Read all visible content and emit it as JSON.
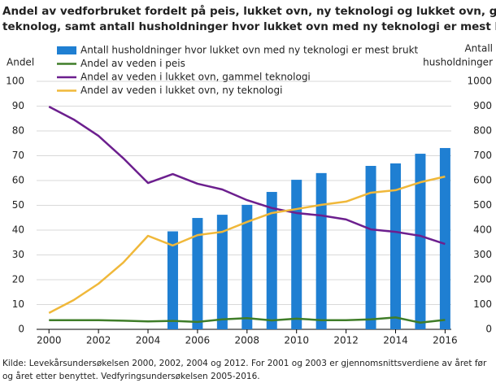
{
  "chart_data": {
    "type": "bar-line",
    "title": [
      "Andel av vedforbruket fordelt på peis, lukket ovn, ny teknologi og lukket ovn, gammel",
      "teknolog, samt antall husholdninger hvor lukket ovn med ny teknologi er mest brukt"
    ],
    "y_label": "Andel",
    "y2_label": [
      "Antall",
      "husholdninger"
    ],
    "source": [
      "Kilde: Levekårsundersøkelsen 2000, 2002, 2004 og  2012. For 2001 og 2003 er gjennomsnittsverdiene av året før",
      "og året etter benyttet. Vedfyringsundersøkelsen 2005-2016."
    ],
    "x": [
      2000,
      2001,
      2002,
      2003,
      2004,
      2005,
      2006,
      2007,
      2008,
      2009,
      2010,
      2011,
      2012,
      2013,
      2014,
      2015,
      2016
    ],
    "xlim": [
      1999.5,
      2016.25
    ],
    "xticks": [
      2000,
      2002,
      2004,
      2006,
      2008,
      2010,
      2012,
      2014,
      2016
    ],
    "ylim": [
      0,
      100
    ],
    "yticks": [
      0,
      10,
      20,
      30,
      40,
      50,
      60,
      70,
      80,
      90,
      100
    ],
    "y2lim": [
      0,
      1000
    ],
    "y2ticks": [
      0,
      100,
      200,
      300,
      400,
      500,
      600,
      700,
      800,
      900,
      1000
    ],
    "grid": true,
    "series": [
      {
        "name": "Antall husholdninger hvor lukket ovn med ny teknologi er mest brukt",
        "kind": "bar",
        "axis": "y2",
        "color": "#1f7fd2",
        "values": [
          null,
          null,
          null,
          null,
          null,
          395,
          449,
          462,
          502,
          554,
          603,
          630,
          null,
          659,
          669,
          708,
          731
        ]
      },
      {
        "name": "Andel av veden i peis",
        "kind": "line",
        "color": "#3f7d28",
        "values": [
          3.7,
          3.7,
          3.7,
          3.5,
          3.2,
          3.4,
          3.0,
          4.0,
          4.5,
          3.6,
          4.3,
          3.7,
          3.7,
          4.0,
          4.8,
          2.7,
          3.8
        ]
      },
      {
        "name": "Andel av veden i lukket ovn, gammel teknologi",
        "kind": "line",
        "color": "#6c1f8e",
        "values": [
          89.8,
          84.6,
          78,
          69,
          59,
          62.6,
          58.7,
          56.4,
          52.1,
          48.9,
          46.9,
          45.9,
          44.3,
          40.3,
          39.3,
          37.7,
          34.4
        ]
      },
      {
        "name": "Andel av veden i lukket ovn, ny teknologi",
        "kind": "line",
        "color": "#f0b83a",
        "values": [
          6.6,
          11.8,
          18.4,
          26.9,
          37.7,
          33.8,
          38,
          39.3,
          43.3,
          46.9,
          48.5,
          50.2,
          51.5,
          55.1,
          56.1,
          59.3,
          61.6
        ]
      }
    ]
  }
}
